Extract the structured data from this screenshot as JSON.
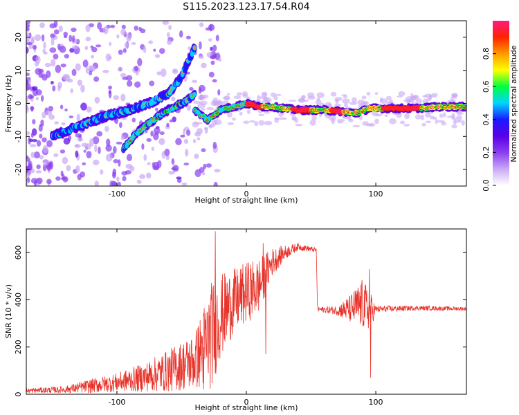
{
  "title": "S115.2023.123.17.54.R04",
  "chart_data": [
    {
      "type": "heatmap",
      "xlabel": "Height of straight line (km)",
      "ylabel": "Frequency (Hz)",
      "xlim": [
        -170,
        170
      ],
      "ylim": [
        -25,
        25
      ],
      "x_ticks": [
        -100,
        0,
        100
      ],
      "y_ticks": [
        -20,
        -10,
        0,
        10,
        20
      ],
      "colorbar": {
        "label": "Normalized spectral amplitude",
        "range": [
          0,
          1
        ],
        "ticks": [
          "0.0",
          "0.2",
          "0.4",
          "0.6",
          "0.8"
        ],
        "tick_values": [
          0.0,
          0.2,
          0.4,
          0.6,
          0.8
        ],
        "colors": [
          "#ffffff",
          "#c9a8f5",
          "#8a3ef0",
          "#5a00e6",
          "#1a1aff",
          "#00d5ff",
          "#00ff40",
          "#ffff00",
          "#ff9900",
          "#ff2200",
          "#ff1a80"
        ]
      },
      "ridge_main": [
        {
          "x": -40,
          "y": -2
        },
        {
          "x": -30,
          "y": -5
        },
        {
          "x": -20,
          "y": -2
        },
        {
          "x": -10,
          "y": -1
        },
        {
          "x": 0,
          "y": 0
        },
        {
          "x": 10,
          "y": -1
        },
        {
          "x": 20,
          "y": -1
        },
        {
          "x": 40,
          "y": -2
        },
        {
          "x": 60,
          "y": -2
        },
        {
          "x": 75,
          "y": -2.5
        },
        {
          "x": 85,
          "y": -3
        },
        {
          "x": 95,
          "y": -1.5
        },
        {
          "x": 110,
          "y": -1.5
        },
        {
          "x": 130,
          "y": -1.5
        },
        {
          "x": 150,
          "y": -1
        },
        {
          "x": 170,
          "y": -1
        }
      ],
      "ridge_upper": [
        {
          "x": -150,
          "y": -10
        },
        {
          "x": -130,
          "y": -7
        },
        {
          "x": -110,
          "y": -4
        },
        {
          "x": -90,
          "y": -2
        },
        {
          "x": -75,
          "y": 0
        },
        {
          "x": -60,
          "y": 3
        },
        {
          "x": -50,
          "y": 8
        },
        {
          "x": -40,
          "y": 17
        }
      ],
      "ridge_lower": [
        {
          "x": -95,
          "y": -14
        },
        {
          "x": -85,
          "y": -9
        },
        {
          "x": -75,
          "y": -6
        },
        {
          "x": -65,
          "y": -3
        },
        {
          "x": -55,
          "y": -1
        },
        {
          "x": -45,
          "y": 1
        },
        {
          "x": -40,
          "y": 3
        }
      ]
    },
    {
      "type": "line",
      "xlabel": "Height of straight line (km)",
      "ylabel": "SNR (10 * v/v)",
      "xlim": [
        -170,
        170
      ],
      "ylim": [
        0,
        700
      ],
      "x_ticks": [
        -100,
        0,
        100
      ],
      "y_ticks": [
        0,
        200,
        400,
        600
      ],
      "color": "#e8332a",
      "envelope": [
        {
          "x": -170,
          "y": 15,
          "amp": 10
        },
        {
          "x": -140,
          "y": 20,
          "amp": 15
        },
        {
          "x": -120,
          "y": 35,
          "amp": 30
        },
        {
          "x": -100,
          "y": 50,
          "amp": 40
        },
        {
          "x": -80,
          "y": 70,
          "amp": 60
        },
        {
          "x": -60,
          "y": 100,
          "amp": 90
        },
        {
          "x": -40,
          "y": 140,
          "amp": 120
        },
        {
          "x": -27,
          "y": 250,
          "amp": 230
        },
        {
          "x": -20,
          "y": 330,
          "amp": 180
        },
        {
          "x": -10,
          "y": 390,
          "amp": 140
        },
        {
          "x": 0,
          "y": 430,
          "amp": 130
        },
        {
          "x": 10,
          "y": 460,
          "amp": 120
        },
        {
          "x": 20,
          "y": 560,
          "amp": 60
        },
        {
          "x": 30,
          "y": 600,
          "amp": 30
        },
        {
          "x": 40,
          "y": 625,
          "amp": 15
        },
        {
          "x": 54,
          "y": 610,
          "amp": 10
        },
        {
          "x": 55,
          "y": 360,
          "amp": 10
        },
        {
          "x": 70,
          "y": 355,
          "amp": 20
        },
        {
          "x": 80,
          "y": 360,
          "amp": 60
        },
        {
          "x": 90,
          "y": 380,
          "amp": 110
        },
        {
          "x": 96,
          "y": 350,
          "amp": 80
        },
        {
          "x": 100,
          "y": 360,
          "amp": 15
        },
        {
          "x": 130,
          "y": 365,
          "amp": 10
        },
        {
          "x": 170,
          "y": 362,
          "amp": 8
        }
      ],
      "spikes": [
        {
          "x": -24,
          "y": 690
        },
        {
          "x": -33,
          "y": 20
        },
        {
          "x": 15,
          "y": 170
        },
        {
          "x": 95,
          "y": 530
        },
        {
          "x": 96,
          "y": 70
        },
        {
          "x": 13,
          "y": 640
        }
      ]
    }
  ]
}
